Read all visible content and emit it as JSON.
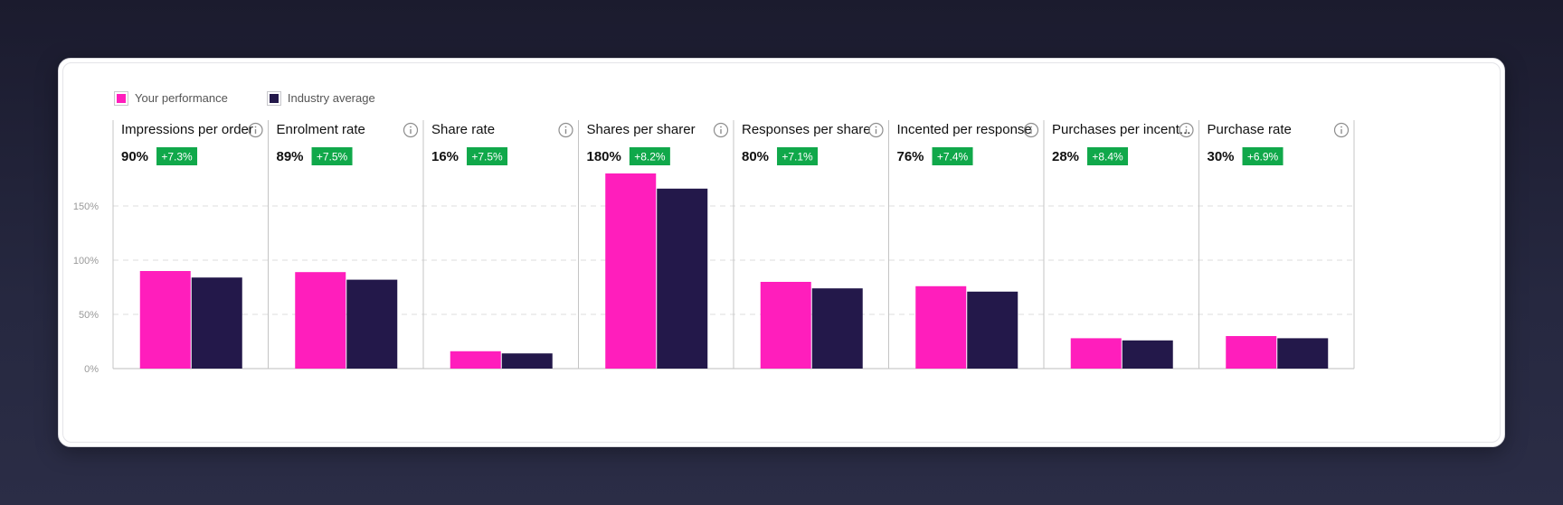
{
  "legend": {
    "your_label": "Your performance",
    "industry_label": "Industry average"
  },
  "colors": {
    "your": "#ff1ebc",
    "industry": "#23184a",
    "delta_badge": "#10a84a"
  },
  "chart_data": {
    "type": "bar",
    "ylim": [
      0,
      180
    ],
    "yticks": [
      {
        "value": 0,
        "label": "0%"
      },
      {
        "value": 50,
        "label": "50%"
      },
      {
        "value": 100,
        "label": "100%"
      },
      {
        "value": 150,
        "label": "150%"
      }
    ],
    "grid": true,
    "legend_position": "top-left",
    "series_names": [
      "Your performance",
      "Industry average"
    ],
    "panels": [
      {
        "title": "Impressions per order",
        "value_label": "90%",
        "delta": "+7.3%",
        "your": 90,
        "industry": 84
      },
      {
        "title": "Enrolment rate",
        "value_label": "89%",
        "delta": "+7.5%",
        "your": 89,
        "industry": 82
      },
      {
        "title": "Share rate",
        "value_label": "16%",
        "delta": "+7.5%",
        "your": 16,
        "industry": 14
      },
      {
        "title": "Shares per sharer",
        "value_label": "180%",
        "delta": "+8.2%",
        "your": 180,
        "industry": 166
      },
      {
        "title": "Responses per share",
        "value_label": "80%",
        "delta": "+7.1%",
        "your": 80,
        "industry": 74
      },
      {
        "title": "Incented per response",
        "value_label": "76%",
        "delta": "+7.4%",
        "your": 76,
        "industry": 71
      },
      {
        "title": "Purchases per incent...",
        "value_label": "28%",
        "delta": "+8.4%",
        "your": 28,
        "industry": 26
      },
      {
        "title": "Purchase rate",
        "value_label": "30%",
        "delta": "+6.9%",
        "your": 30,
        "industry": 28
      }
    ]
  }
}
